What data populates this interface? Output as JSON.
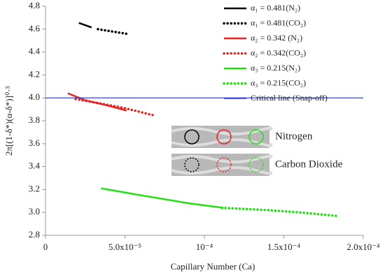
{
  "chart_data": {
    "type": "line",
    "xlabel": "Capillary Number (Ca)",
    "ylabel": "2π[(1-δ*)(α-δ*)]⁰·⁵",
    "xlim": [
      0,
      0.0002
    ],
    "xticks": [
      0,
      {
        "value": 5e-05,
        "label": "5.0x10⁻⁵"
      },
      {
        "value": 0.0001,
        "label": "10⁻⁴"
      },
      {
        "value": 0.00015,
        "label": "1.5x10⁻⁴"
      },
      {
        "value": 0.0002,
        "label": "2.0x10⁻⁴"
      }
    ],
    "ylim": [
      2.8,
      4.8
    ],
    "yticks": [
      2.8,
      {
        "value": 3,
        "label": "3.0"
      },
      3.2,
      3.4,
      3.6,
      3.8,
      {
        "value": 4,
        "label": "4.0"
      },
      4.2,
      4.4,
      4.6,
      4.8
    ],
    "legend": "top-right",
    "annotations": [
      "Nitrogen",
      "Carbon Dioxide"
    ],
    "series": [
      {
        "name": "α₁ = 0.481(N₂)",
        "color": "#000000",
        "dash": "solid",
        "x": [
          2.1e-05,
          2.5e-05,
          2.9e-05
        ],
        "values": [
          4.655,
          4.635,
          4.615
        ]
      },
      {
        "name": "α₁ = 0.481(CO₂)",
        "color": "#000000",
        "dash": "dotted",
        "x": [
          3.3e-05,
          4.2e-05,
          5.1e-05
        ],
        "values": [
          4.6,
          4.58,
          4.56
        ]
      },
      {
        "name": "α₂ = 0.342 (N₂)",
        "color": "#e8231f",
        "dash": "solid",
        "x": [
          1.4e-05,
          2.5e-05,
          4e-05,
          5.1e-05
        ],
        "values": [
          4.04,
          3.98,
          3.93,
          3.89
        ]
      },
      {
        "name": "α₂ = 0.342(CO₂)",
        "color": "#e8231f",
        "dash": "dotted",
        "x": [
          1.9e-05,
          3.5e-05,
          5e-05,
          6.9e-05
        ],
        "values": [
          3.99,
          3.95,
          3.91,
          3.845
        ]
      },
      {
        "name": "α₃ = 0.215(N₂)",
        "color": "#22e012",
        "dash": "solid",
        "x": [
          3.5e-05,
          6e-05,
          9e-05,
          0.000112
        ],
        "values": [
          3.21,
          3.15,
          3.08,
          3.04
        ]
      },
      {
        "name": "α₃ = 0.215(CO₂)",
        "color": "#22e012",
        "dash": "dotted",
        "x": [
          0.000111,
          0.00014,
          0.00016,
          0.000183
        ],
        "values": [
          3.04,
          3.02,
          3.0,
          2.97
        ]
      },
      {
        "name": "Critical line (Snap-off)",
        "color": "#1f2fd0",
        "dash": "thin",
        "x": [
          0,
          0.0002
        ],
        "values": [
          4,
          4
        ]
      }
    ]
  }
}
